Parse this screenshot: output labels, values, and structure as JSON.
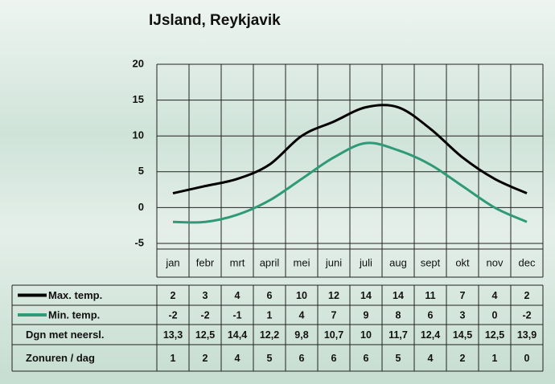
{
  "chart_data": {
    "type": "line",
    "title": "IJsland, Reykjavik",
    "categories": [
      "jan",
      "febr",
      "mrt",
      "april",
      "mei",
      "juni",
      "juli",
      "aug",
      "sept",
      "okt",
      "nov",
      "dec"
    ],
    "ylim": [
      -5,
      20
    ],
    "yticks": [
      20,
      15,
      10,
      5,
      0,
      -5
    ],
    "grid": true,
    "series": [
      {
        "name": "Max. temp.",
        "color": "#000000",
        "values": [
          2,
          3,
          4,
          6,
          10,
          12,
          14,
          14,
          11,
          7,
          4,
          2
        ]
      },
      {
        "name": "Min. temp.",
        "color": "#2f9a78",
        "values": [
          -2,
          -2,
          -1,
          1,
          4,
          7,
          9,
          8,
          6,
          3,
          0,
          -2
        ]
      }
    ],
    "table_rows": [
      {
        "label": "Dgn met neersl.",
        "values": [
          "13,3",
          "12,5",
          "14,4",
          "12,2",
          "9,8",
          "10,7",
          "10",
          "11,7",
          "12,4",
          "14,5",
          "12,5",
          "13,9"
        ]
      },
      {
        "label": "Zonuren / dag",
        "values": [
          1,
          2,
          4,
          5,
          6,
          6,
          6,
          5,
          4,
          2,
          1,
          0
        ]
      }
    ]
  }
}
